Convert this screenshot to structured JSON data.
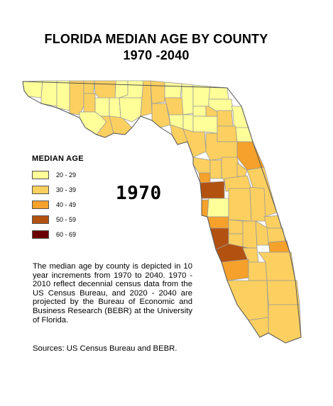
{
  "title": "FLORIDA MEDIAN AGE BY COUNTY",
  "subtitle": "1970 -2040",
  "year_label": "1970",
  "legend": {
    "title": "MEDIAN AGE",
    "items": [
      {
        "label": "20 - 29",
        "color": "#ffff99"
      },
      {
        "label": "30 - 39",
        "color": "#fcd060"
      },
      {
        "label": "40 - 49",
        "color": "#f5a12b"
      },
      {
        "label": "50 - 59",
        "color": "#b35110"
      },
      {
        "label": "60 - 69",
        "color": "#6b0000"
      }
    ]
  },
  "description": "The median age by county is depicted in 10 year increments from 1970 to 2040. 1970 - 2010 reflect decennial census data from the US Census Bureau, and 2020 - 2040 are projected by the Bureau of Economic and Business Research (BEBR) at the University of Florida.",
  "sources": "Sources: US Census Bureau and BEBR.",
  "colors": {
    "border": "#9a9a9a",
    "outline": "#555555"
  }
}
